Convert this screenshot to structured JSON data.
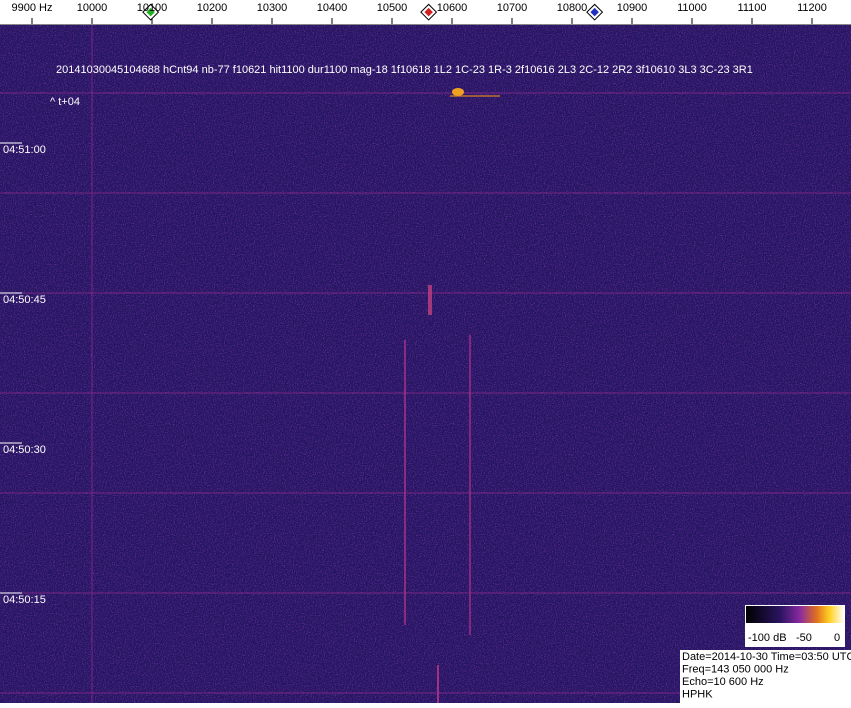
{
  "frequency_axis": {
    "labels": [
      "9900 Hz",
      "10000",
      "10100",
      "10200",
      "10300",
      "10400",
      "10500",
      "10600",
      "10700",
      "10800",
      "10900",
      "11000",
      "11100",
      "11200"
    ]
  },
  "time_labels": [
    "04:51:00",
    "04:50:45",
    "04:50:30",
    "04:50:15"
  ],
  "detection": {
    "info": "20141030045104688 hCnt94 nb-77 f10621 hit1100 dur1100 mag-18 1f10618 1L2 1C-23 1R-3 2f10616 2L3 2C-12 2R2 3f10610 3L3 3C-23 3R1",
    "offset": "^ t+04"
  },
  "color_scale": {
    "labels": [
      "-100 dB",
      "-50",
      "0"
    ]
  },
  "status": {
    "lines": [
      "Date=2014-10-30 Time=03:50 UTC",
      "Freq=143 050 000 Hz",
      "Echo=10 600 Hz",
      "HPHK"
    ]
  }
}
